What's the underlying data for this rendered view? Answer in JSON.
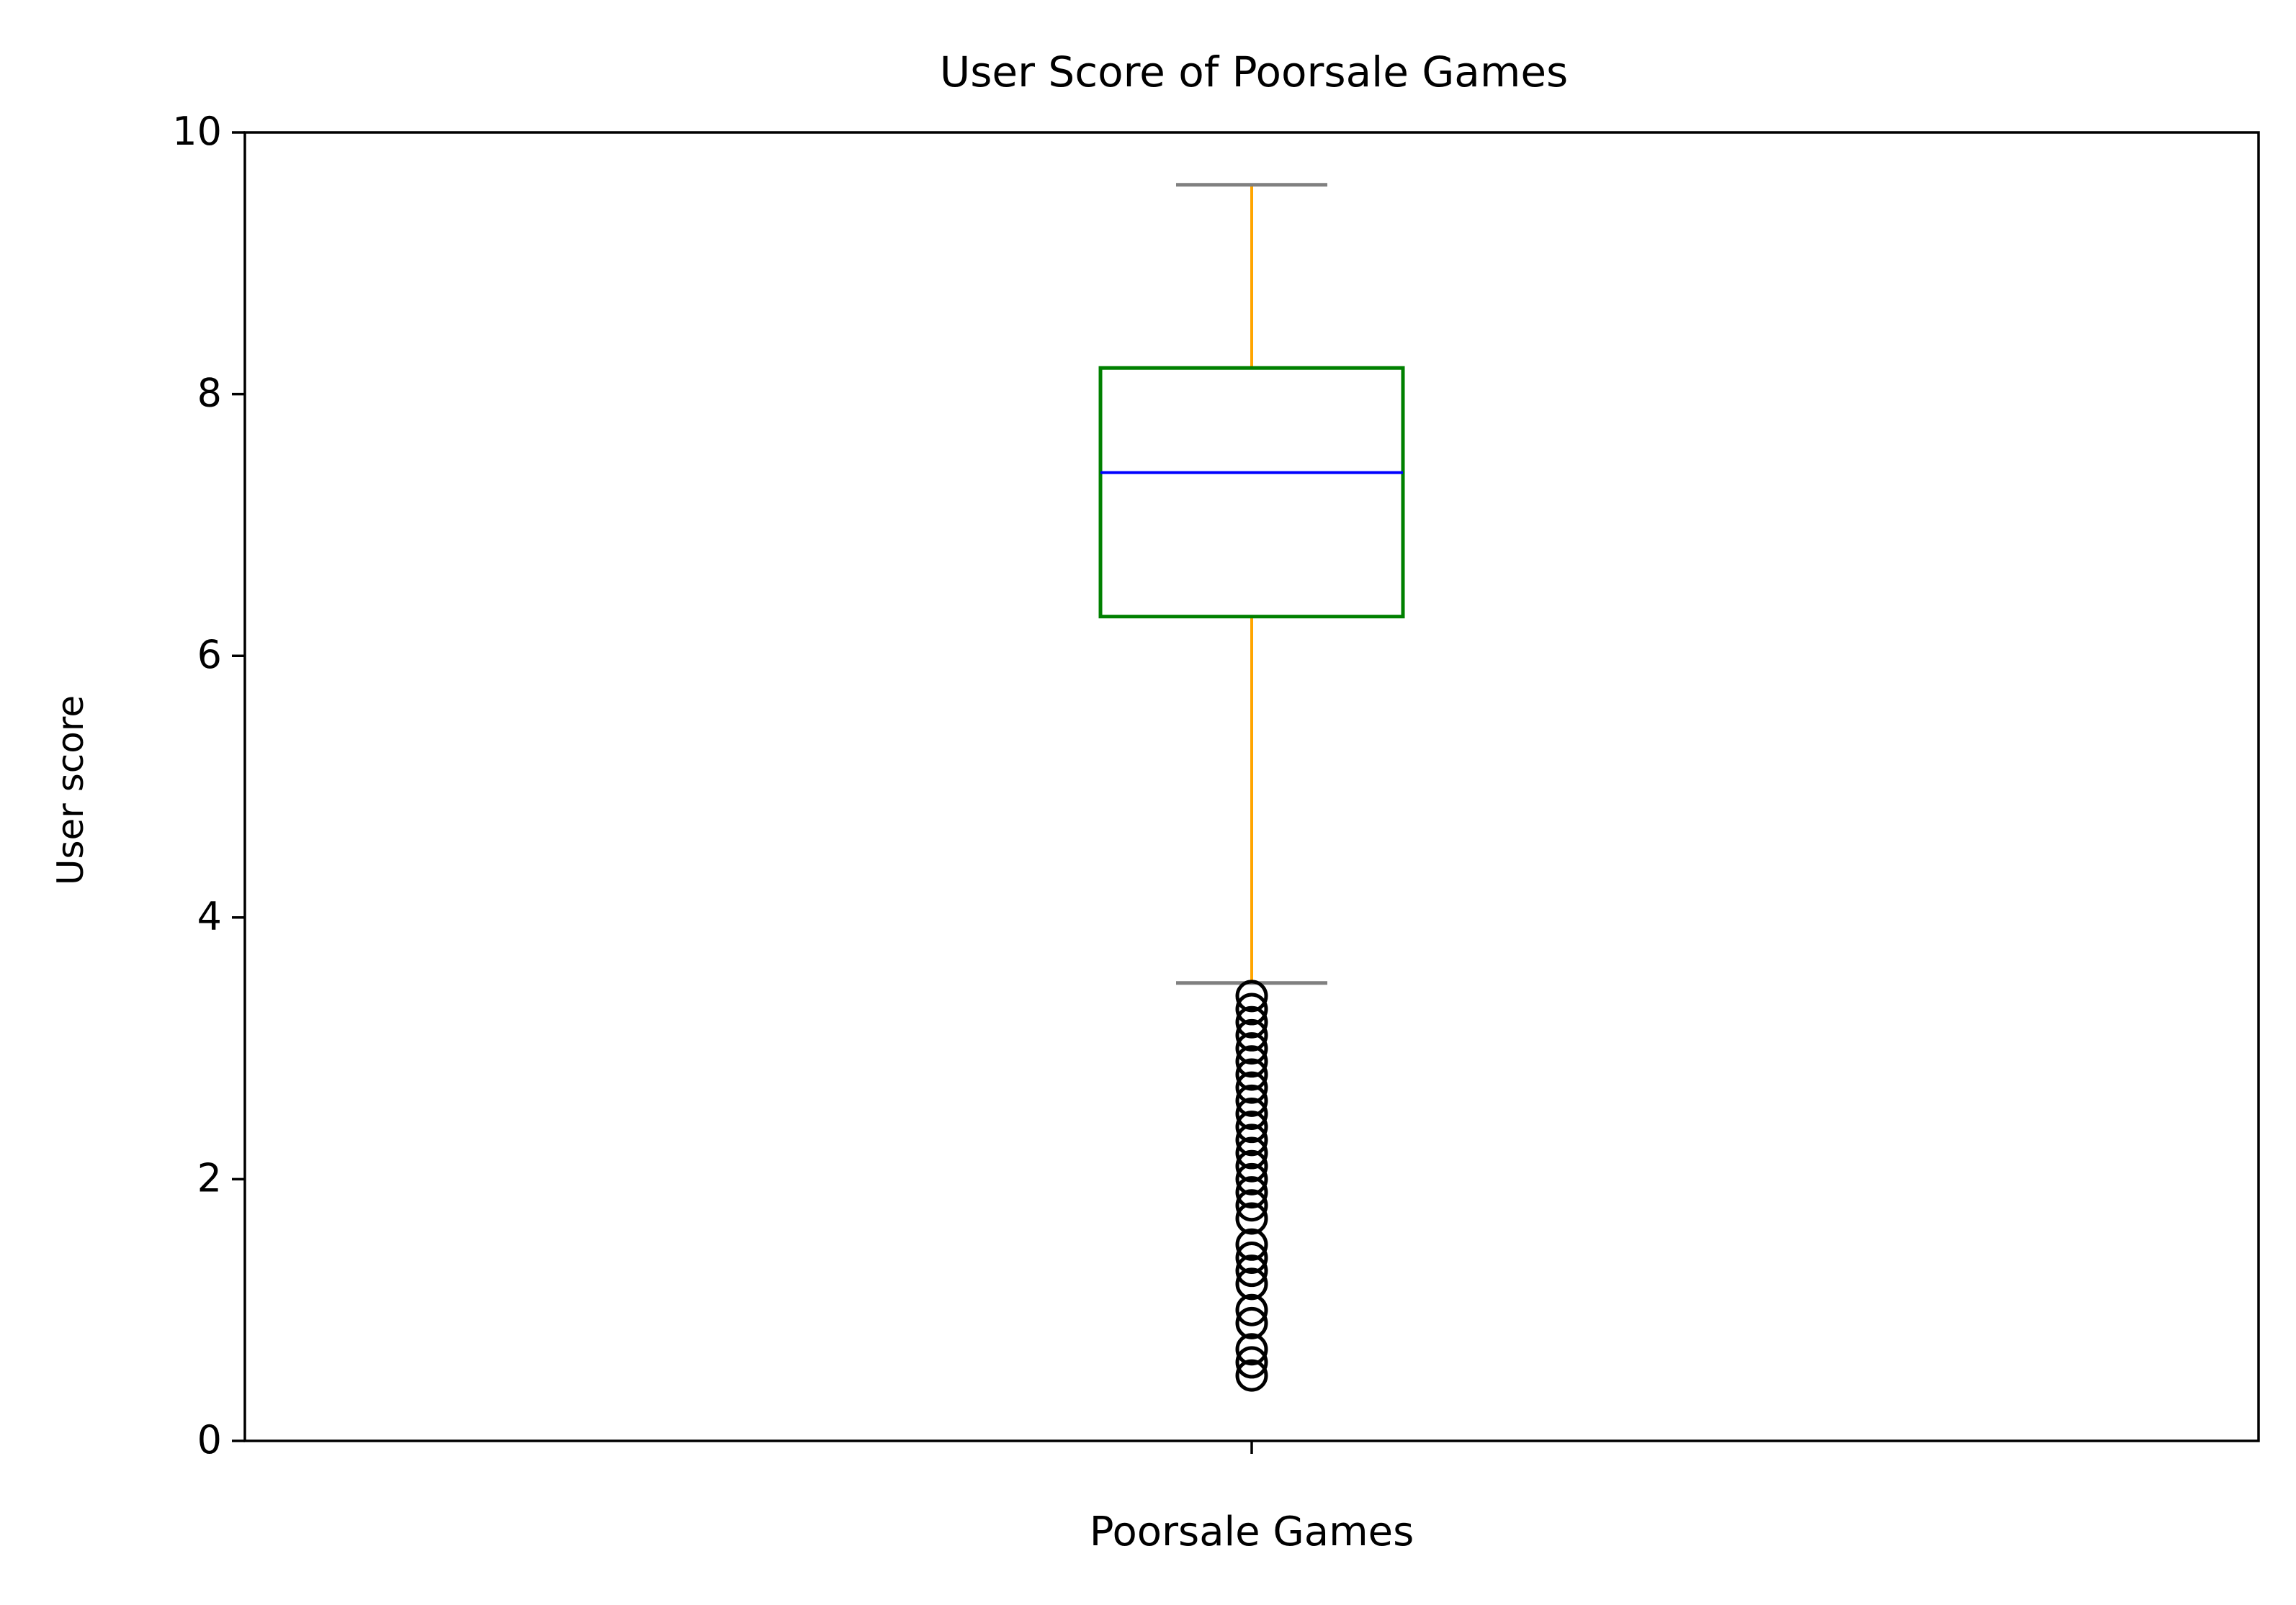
{
  "chart_data": {
    "type": "box",
    "title": "User Score of Poorsale Games",
    "xlabel": "",
    "ylabel": "User score",
    "ylim": [
      0,
      10
    ],
    "yticks": [
      "0",
      "2",
      "4",
      "6",
      "8",
      "10"
    ],
    "categories": [
      "Poorsale Games"
    ],
    "box": {
      "whisker_low": 3.5,
      "q1": 6.3,
      "median": 7.4,
      "q3": 8.2,
      "whisker_high": 9.6
    },
    "outliers": [
      3.4,
      3.3,
      3.2,
      3.1,
      3.0,
      2.9,
      2.8,
      2.7,
      2.6,
      2.5,
      2.4,
      2.3,
      2.2,
      2.1,
      2.0,
      1.9,
      1.8,
      1.7,
      1.5,
      1.4,
      1.3,
      1.2,
      1.0,
      0.9,
      0.7,
      0.6,
      0.5
    ],
    "grid": false,
    "colors": {
      "box": "#008000",
      "median": "#0000ff",
      "whiskers": "#ffa500",
      "caps": "#808080",
      "outliers": "#000000"
    }
  }
}
